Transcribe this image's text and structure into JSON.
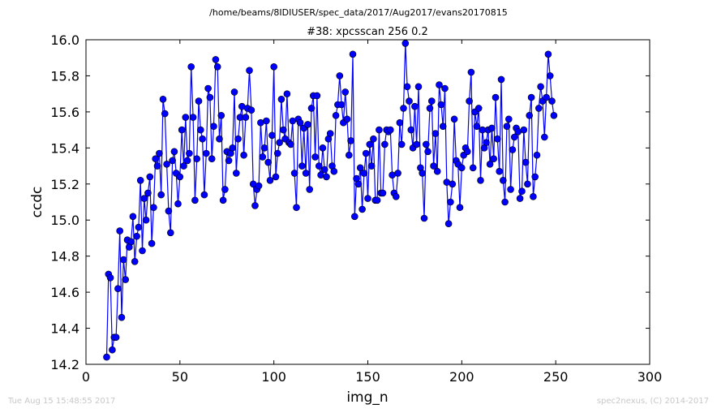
{
  "header": {
    "path": "/home/beams/8IDIUSER/spec_data/2017/Aug2017/evans20170815"
  },
  "footer": {
    "timestamp": "Tue Aug 15 15:48:55 2017",
    "credit": "spec2nexus, (C) 2014-2017"
  },
  "chart_data": {
    "type": "line",
    "title": "#38: xpcsscan 256 0.2",
    "xlabel": "img_n",
    "ylabel": "ccdc",
    "xlim": [
      0,
      300
    ],
    "ylim": [
      14.2,
      16.0
    ],
    "xticks": [
      "0",
      "50",
      "100",
      "150",
      "200",
      "250",
      "300"
    ],
    "yticks": [
      "14.2",
      "14.4",
      "14.6",
      "14.8",
      "15.0",
      "15.2",
      "15.4",
      "15.6",
      "15.8",
      "16.0"
    ],
    "grid": false,
    "legend": "none",
    "line_color": "#0000ff",
    "marker": "circle",
    "x_start": 11,
    "x_step": 1,
    "y": [
      14.24,
      14.7,
      14.68,
      14.28,
      14.35,
      14.35,
      14.62,
      14.94,
      14.46,
      14.78,
      14.67,
      14.89,
      14.85,
      14.88,
      15.02,
      14.77,
      14.91,
      14.96,
      15.22,
      14.83,
      15.12,
      15.0,
      15.15,
      15.24,
      14.87,
      15.07,
      15.34,
      15.3,
      15.37,
      15.14,
      15.67,
      15.59,
      15.31,
      15.05,
      14.93,
      15.33,
      15.38,
      15.26,
      15.09,
      15.24,
      15.5,
      15.3,
      15.57,
      15.33,
      15.37,
      15.85,
      15.57,
      15.11,
      15.34,
      15.66,
      15.5,
      15.45,
      15.14,
      15.37,
      15.73,
      15.68,
      15.34,
      15.52,
      15.89,
      15.85,
      15.45,
      15.58,
      15.11,
      15.17,
      15.38,
      15.33,
      15.37,
      15.4,
      15.71,
      15.26,
      15.45,
      15.57,
      15.63,
      15.36,
      15.57,
      15.62,
      15.83,
      15.61,
      15.2,
      15.08,
      15.17,
      15.19,
      15.54,
      15.35,
      15.4,
      15.55,
      15.32,
      15.22,
      15.47,
      15.85,
      15.24,
      15.37,
      15.43,
      15.67,
      15.5,
      15.45,
      15.7,
      15.43,
      15.42,
      15.55,
      15.26,
      15.07,
      15.56,
      15.54,
      15.3,
      15.51,
      15.26,
      15.53,
      15.17,
      15.62,
      15.69,
      15.35,
      15.69,
      15.3,
      15.25,
      15.4,
      15.28,
      15.24,
      15.45,
      15.48,
      15.3,
      15.27,
      15.58,
      15.64,
      15.8,
      15.64,
      15.54,
      15.71,
      15.56,
      15.36,
      15.44,
      15.92,
      15.02,
      15.23,
      15.2,
      15.29,
      15.06,
      15.26,
      15.37,
      15.12,
      15.42,
      15.3,
      15.45,
      15.11,
      15.11,
      15.5,
      15.15,
      15.15,
      15.42,
      15.5,
      15.49,
      15.5,
      15.25,
      15.15,
      15.13,
      15.26,
      15.54,
      15.42,
      15.62,
      15.98,
      15.74,
      15.66,
      15.5,
      15.4,
      15.63,
      15.42,
      15.74,
      15.29,
      15.26,
      15.01,
      15.42,
      15.38,
      15.62,
      15.66,
      15.3,
      15.48,
      15.27,
      15.75,
      15.64,
      15.52,
      15.73,
      15.21,
      14.98,
      15.1,
      15.2,
      15.56,
      15.33,
      15.31,
      15.07,
      15.29,
      15.36,
      15.4,
      15.38,
      15.66,
      15.82,
      15.29,
      15.6,
      15.52,
      15.62,
      15.22,
      15.5,
      15.4,
      15.43,
      15.5,
      15.31,
      15.51,
      15.34,
      15.68,
      15.45,
      15.27,
      15.78,
      15.22,
      15.1,
      15.52,
      15.56,
      15.17,
      15.39,
      15.46,
      15.51,
      15.49,
      15.12,
      15.16,
      15.5,
      15.32,
      15.2,
      15.58,
      15.68,
      15.13,
      15.24,
      15.36,
      15.62,
      15.74,
      15.66,
      15.46,
      15.68,
      15.92,
      15.8,
      15.66,
      15.58
    ]
  }
}
